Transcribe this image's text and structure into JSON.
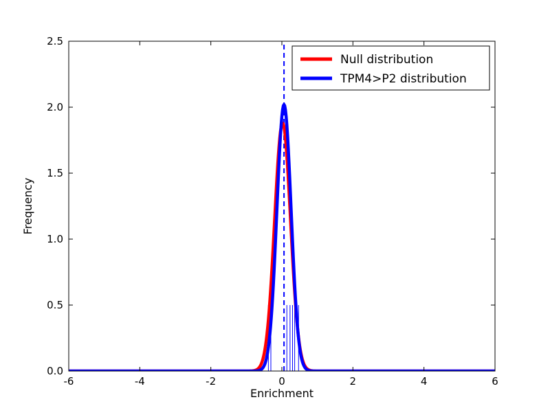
{
  "page": {
    "background": "#ffffff"
  },
  "chart_data": {
    "type": "line",
    "title": "",
    "xlabel": "Enrichment",
    "ylabel": "Frequency",
    "xlim": [
      -6,
      6
    ],
    "ylim": [
      0,
      2.5
    ],
    "grid": false,
    "frame_color": "#000000",
    "background": "#ffffff",
    "xticks": {
      "values": [
        -6,
        -4,
        -2,
        0,
        2,
        4,
        6
      ],
      "labels": [
        "-6",
        "-4",
        "-2",
        "0",
        "2",
        "4",
        "6"
      ]
    },
    "yticks": {
      "values": [
        0,
        0.5,
        1.0,
        1.5,
        2.0,
        2.5
      ],
      "labels": [
        "0.0",
        "0.5",
        "1.0",
        "1.5",
        "2.0",
        "2.5"
      ]
    },
    "series": [
      {
        "name": "Null distribution",
        "color": "#ff0000",
        "curve": "gaussian",
        "mean": 0.02,
        "sigma": 0.225,
        "peak": 1.88,
        "linewidth": 4.5
      },
      {
        "name": "TPM4>P2 distribution",
        "color": "#0000ff",
        "curve": "gaussian",
        "mean": 0.06,
        "sigma": 0.2,
        "peak": 2.02,
        "linewidth": 4.5
      }
    ],
    "vline": {
      "x": 0.06,
      "y_from": 0,
      "y_to": 2.5,
      "color": "#0000ff",
      "style": "dashed",
      "linewidth": 2
    },
    "rug": {
      "x": [
        -0.38,
        -0.31,
        0.14,
        0.23,
        0.3,
        0.36,
        0.47
      ],
      "height": 0.5,
      "color": "#0000ff",
      "linewidth": 1
    },
    "legend": {
      "position": "upper-right",
      "entries": [
        {
          "label": "Null distribution",
          "color": "#ff0000"
        },
        {
          "label": "TPM4>P2 distribution",
          "color": "#0000ff"
        }
      ]
    }
  }
}
